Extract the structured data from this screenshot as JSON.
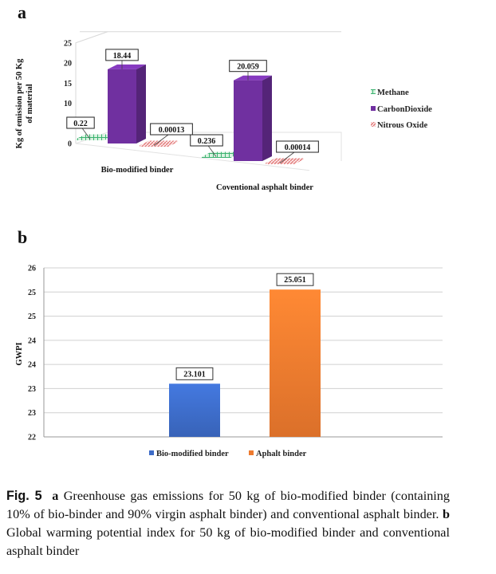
{
  "chart_data": [
    {
      "type": "bar",
      "panel": "a",
      "categories": [
        "Bio-modified binder",
        "Coventional asphalt binder"
      ],
      "series": [
        {
          "name": "Methane",
          "values": [
            0.22,
            0.236
          ],
          "labels": [
            "0.22",
            "0.236"
          ],
          "color": "#3cb371"
        },
        {
          "name": "CarbonDioxide",
          "values": [
            18.44,
            20.059
          ],
          "labels": [
            "18.44",
            "20.059"
          ],
          "color": "#7030a0"
        },
        {
          "name": "Nitrous Oxide",
          "values": [
            0.00013,
            0.00014
          ],
          "labels": [
            "0.00013",
            "0.00014"
          ],
          "color": "#e07070"
        }
      ],
      "ylabel": "Kg of emission per 50 Kg of material",
      "ylim": [
        0,
        25
      ],
      "yticks": [
        "0",
        "5",
        "10",
        "15",
        "20",
        "25"
      ],
      "legend_position": "right",
      "grid": false
    },
    {
      "type": "bar",
      "panel": "b",
      "categories": [
        "Bio-modified binder",
        "Aphalt binder"
      ],
      "values": [
        23.101,
        25.051
      ],
      "labels": [
        "23.101",
        "25.051"
      ],
      "colors": [
        "#3d6cc8",
        "#ee7a2e"
      ],
      "series": [
        {
          "name": "Bio-modified binder",
          "color": "#3d6cc8"
        },
        {
          "name": "Aphalt binder",
          "color": "#ee7a2e"
        }
      ],
      "ylabel": "GWPI",
      "ylim": [
        22,
        25.5
      ],
      "yticks": [
        "22",
        "23",
        "23",
        "24",
        "24",
        "25",
        "25",
        "26"
      ],
      "legend_position": "bottom",
      "grid": true
    }
  ],
  "panel_labels": {
    "a": "a",
    "b": "b"
  },
  "caption": {
    "fig_label": "Fig. 5",
    "part_a": "a",
    "text_a": " Greenhouse gas emissions for 50 kg of bio-modified binder (containing 10% of bio-binder and 90% virgin asphalt binder) and conventional asphalt binder. ",
    "part_b": "b",
    "text_b": " Global warming potential index for 50 kg of bio-modified binder and conventional asphalt binder"
  }
}
